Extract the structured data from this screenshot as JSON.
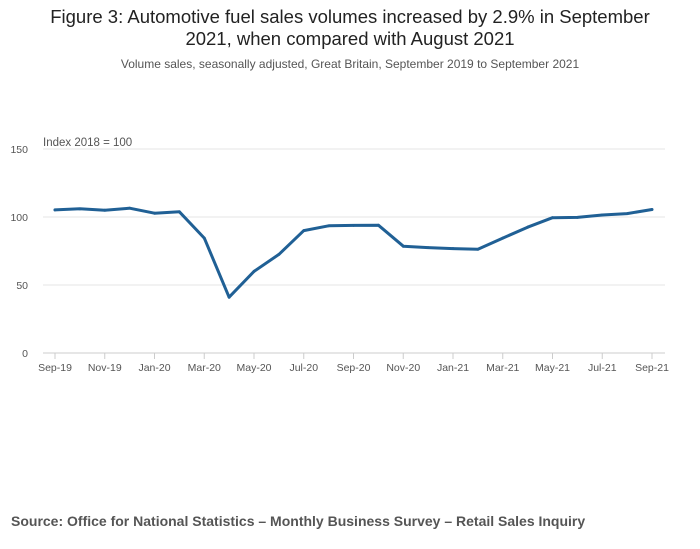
{
  "title_line1": "Figure 3: Automotive fuel sales volumes increased by 2.9% in September",
  "title_line2": "2021, when compared with August 2021",
  "subtitle": "Volume sales, seasonally adjusted, Great Britain, September 2019 to September 2021",
  "source": "Source: Office for National Statistics – Monthly Business Survey – Retail Sales Inquiry",
  "colors": {
    "line": "#206095",
    "grid": "#e5e5e5",
    "axis": "#cccccc"
  },
  "chart_data": {
    "type": "line",
    "title": "Figure 3: Automotive fuel sales volumes increased by 2.9% in September 2021, when compared with August 2021",
    "ylabel": "Index 2018 = 100",
    "ylim": [
      0,
      150
    ],
    "yticks": [
      0,
      50,
      100,
      150
    ],
    "x": [
      "Sep-19",
      "Oct-19",
      "Nov-19",
      "Dec-19",
      "Jan-20",
      "Feb-20",
      "Mar-20",
      "Apr-20",
      "May-20",
      "Jun-20",
      "Jul-20",
      "Aug-20",
      "Sep-20",
      "Oct-20",
      "Nov-20",
      "Dec-20",
      "Jan-21",
      "Feb-21",
      "Mar-21",
      "Apr-21",
      "May-21",
      "Jun-21",
      "Jul-21",
      "Aug-21",
      "Sep-21"
    ],
    "xtick_labels": [
      "Sep-19",
      "Nov-19",
      "Jan-20",
      "Mar-20",
      "May-20",
      "Jul-20",
      "Sep-20",
      "Nov-20",
      "Jan-21",
      "Mar-21",
      "May-21",
      "Jul-21",
      "Sep-21"
    ],
    "series": [
      {
        "name": "Automotive fuel",
        "values": [
          105.2,
          106.0,
          105.0,
          106.5,
          102.8,
          103.8,
          84.5,
          41.0,
          60.0,
          72.5,
          90.0,
          93.5,
          93.8,
          94.0,
          78.5,
          77.5,
          76.8,
          76.3,
          84.5,
          92.5,
          99.5,
          99.7,
          101.5,
          102.5,
          105.5
        ]
      }
    ]
  }
}
